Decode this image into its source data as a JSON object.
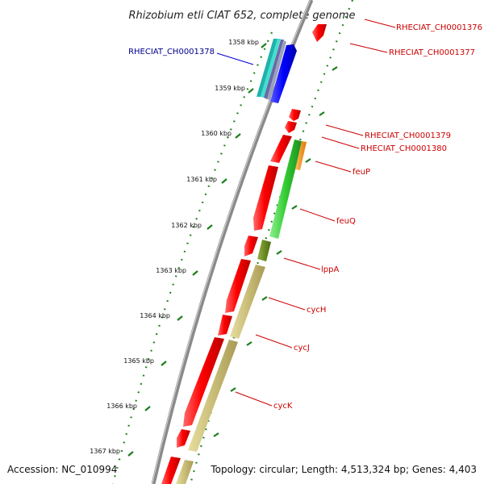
{
  "title": "Rhizobium etli CIAT 652, complete genome",
  "footer": {
    "accession": "Accession: NC_010994",
    "topology": "Topology: circular; Length: 4,513,324 bp; Genes: 4,403"
  },
  "colors": {
    "red_gene": "#ff0000",
    "red_label": "#cc0000",
    "blue_label": "#00008b",
    "tick_green": "#1a7f1a",
    "backbone": "#888888"
  },
  "ticks": [
    {
      "label": "1358 kbp"
    },
    {
      "label": "1359 kbp"
    },
    {
      "label": "1360 kbp"
    },
    {
      "label": "1361 kbp"
    },
    {
      "label": "1362 kbp"
    },
    {
      "label": "1363 kbp"
    },
    {
      "label": "1364 kbp"
    },
    {
      "label": "1365 kbp"
    },
    {
      "label": "1366 kbp"
    },
    {
      "label": "1367 kbp"
    }
  ],
  "genes": [
    {
      "name": "RHECIAT_CH0001376",
      "color": "red"
    },
    {
      "name": "RHECIAT_CH0001377",
      "color": "red"
    },
    {
      "name": "RHECIAT_CH0001378",
      "color": "blue"
    },
    {
      "name": "RHECIAT_CH0001379",
      "color": "red"
    },
    {
      "name": "RHECIAT_CH0001380",
      "color": "red"
    },
    {
      "name": "feuP",
      "color": "red"
    },
    {
      "name": "feuQ",
      "color": "red"
    },
    {
      "name": "lppA",
      "color": "red"
    },
    {
      "name": "cycH",
      "color": "red"
    },
    {
      "name": "cycJ",
      "color": "red"
    },
    {
      "name": "cycK",
      "color": "red"
    }
  ]
}
